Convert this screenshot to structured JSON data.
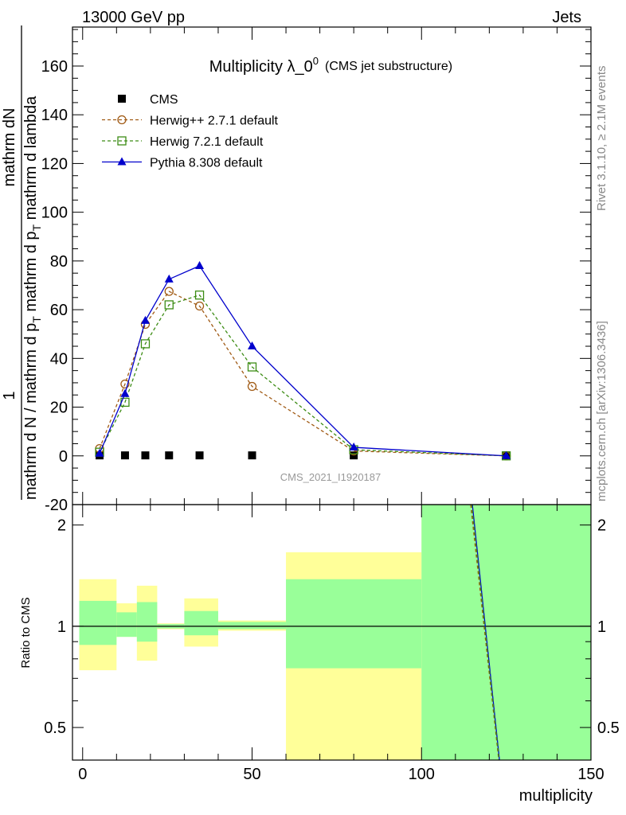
{
  "header": {
    "left": "13000 GeV pp",
    "right": "Jets",
    "side_right": "Rivet 3.1.10, ≥ 2.1M events",
    "side_right2": "mcplots.cern.ch [arXiv:1306.3436]",
    "watermark": "CMS_2021_I1920187"
  },
  "chart_data": [
    {
      "type": "line",
      "title": "Multiplicity λ_0",
      "title_sup": "0",
      "subtitle": "(CMS jet substructure)",
      "ylabel_numerator": "1",
      "ylabel_num2": "mathrm dN",
      "ylabel_denominator": "mathrm d N / mathrm d p",
      "ylabel_den_sub": "T",
      "ylabel_den2": " mathrm d p",
      "ylabel_den2_sub": "T",
      "ylabel_den3": " mathrm d lambda",
      "xlim": [
        -3,
        150
      ],
      "ylim": [
        -20,
        176
      ],
      "yticks": [
        -20,
        0,
        20,
        40,
        60,
        80,
        100,
        120,
        140,
        160
      ],
      "legend_position": "top-left",
      "series": [
        {
          "name": "CMS",
          "color": "#000000",
          "marker": "square-filled",
          "line": "none",
          "x": [
            5,
            12.5,
            18.5,
            25.5,
            34.5,
            50,
            80,
            125
          ],
          "y": [
            0.2,
            0.2,
            0.2,
            0.2,
            0.2,
            0.2,
            0.2,
            0.2
          ]
        },
        {
          "name": "Herwig++ 2.7.1 default",
          "color": "#a05a14",
          "marker": "circle-open",
          "line": "dashed",
          "x": [
            5,
            12.5,
            18.5,
            25.5,
            34.5,
            50,
            80,
            125
          ],
          "y": [
            3,
            29.5,
            54,
            67.5,
            61.5,
            28.5,
            2,
            0
          ]
        },
        {
          "name": "Herwig 7.2.1 default",
          "color": "#3c8c14",
          "marker": "square-open",
          "line": "dashed",
          "x": [
            5,
            12.5,
            18.5,
            25.5,
            34.5,
            50,
            80,
            125
          ],
          "y": [
            1.5,
            22,
            46,
            62,
            66,
            36.5,
            2.5,
            0
          ]
        },
        {
          "name": "Pythia 8.308 default",
          "color": "#0000cc",
          "marker": "triangle-filled",
          "line": "solid",
          "x": [
            5,
            12.5,
            18.5,
            25.5,
            34.5,
            50,
            80,
            125
          ],
          "y": [
            1,
            25.5,
            55.5,
            72.5,
            78,
            45,
            3.5,
            0
          ]
        }
      ]
    },
    {
      "type": "area",
      "ylabel": "Ratio to CMS",
      "xlabel": "multiplicity",
      "xlim": [
        -3,
        150
      ],
      "ylim": [
        0.4,
        2.3
      ],
      "yticks": [
        0.5,
        1,
        2
      ],
      "xticks": [
        0,
        50,
        100,
        150
      ],
      "reference": 1,
      "bands": [
        {
          "x0": -1,
          "x1": 10,
          "yellow": [
            0.74,
            1.38
          ],
          "green": [
            0.88,
            1.19
          ]
        },
        {
          "x0": 10,
          "x1": 16,
          "yellow": [
            0.93,
            1.17
          ],
          "green": [
            0.93,
            1.1
          ]
        },
        {
          "x0": 16,
          "x1": 22,
          "yellow": [
            0.79,
            1.32
          ],
          "green": [
            0.9,
            1.18
          ]
        },
        {
          "x0": 22,
          "x1": 30,
          "yellow": [
            0.98,
            1.02
          ],
          "green": [
            0.985,
            1.015
          ]
        },
        {
          "x0": 30,
          "x1": 40,
          "yellow": [
            0.87,
            1.21
          ],
          "green": [
            0.94,
            1.11
          ]
        },
        {
          "x0": 40,
          "x1": 60,
          "yellow": [
            0.97,
            1.04
          ],
          "green": [
            0.98,
            1.03
          ]
        },
        {
          "x0": 60,
          "x1": 100,
          "yellow": [
            0.4,
            1.66
          ],
          "green": [
            0.75,
            1.38
          ]
        },
        {
          "x0": 100,
          "x1": 150,
          "yellow": [
            0.4,
            2.3
          ],
          "green": [
            0.4,
            2.3
          ]
        }
      ],
      "ratio_lines": [
        {
          "name": "Pythia 8.308 default",
          "color": "#0000cc",
          "x": [
            115,
            123
          ],
          "y": [
            2.3,
            0.4
          ]
        },
        {
          "name": "Herwig++ 2.7.1 default",
          "color": "#a05a14",
          "x": [
            114.5,
            122.8
          ],
          "y": [
            2.3,
            0.4
          ]
        },
        {
          "name": "Herwig 7.2.1 default",
          "color": "#3c8c14",
          "x": [
            114.8,
            122.9
          ],
          "y": [
            2.3,
            0.4
          ]
        }
      ]
    }
  ]
}
